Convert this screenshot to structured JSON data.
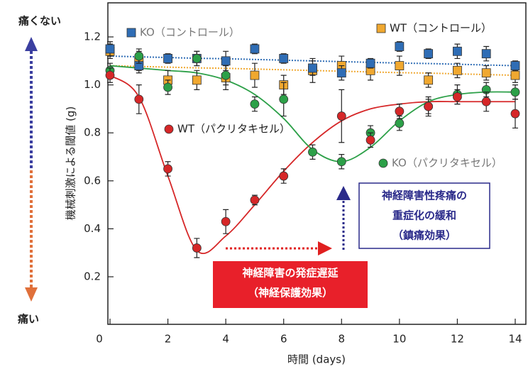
{
  "chart_data": {
    "type": "scatter",
    "x_label": "時間 (days)",
    "y_label": "機械刺激による閾値 (g)",
    "top_label": "痛くない",
    "bottom_label": "痛い",
    "x": [
      0,
      1,
      2,
      3,
      4,
      5,
      6,
      7,
      8,
      9,
      10,
      11,
      12,
      13,
      14
    ],
    "xlim": [
      0,
      14
    ],
    "xticks": [
      0,
      2,
      4,
      6,
      8,
      10,
      12,
      14
    ],
    "ylim": [
      0,
      1.34
    ],
    "yticks": [
      0.2,
      0.4,
      0.6,
      0.8,
      {
        "value": 1,
        "label": "1.0"
      },
      1.2
    ],
    "series": [
      {
        "name": "KO（コントロール）",
        "color": "#2f6db5",
        "marker": "square",
        "fit_style": "dotted",
        "values": [
          1.15,
          1.08,
          1.11,
          1.11,
          1.1,
          1.15,
          1.11,
          1.07,
          1.05,
          1.09,
          1.16,
          1.13,
          1.14,
          1.13,
          1.08
        ],
        "errors": [
          0.03,
          0.03,
          0.02,
          0.03,
          0.04,
          0.02,
          0.02,
          0.03,
          0.03,
          0.02,
          0.02,
          0.02,
          0.03,
          0.03,
          0.02
        ],
        "fit": [
          1.12,
          1.117,
          1.114,
          1.111,
          1.109,
          1.106,
          1.103,
          1.1,
          1.097,
          1.094,
          1.091,
          1.089,
          1.086,
          1.083,
          1.08
        ]
      },
      {
        "name": "WT（コントロール）",
        "color": "#f0a830",
        "marker": "square",
        "fit_style": "dotted",
        "values": [
          1.14,
          1.1,
          1.02,
          1.02,
          1.03,
          1.04,
          1.0,
          1.06,
          1.08,
          1.06,
          1.08,
          1.02,
          1.06,
          1.05,
          1.04
        ],
        "errors": [
          0.03,
          0.04,
          0.04,
          0.04,
          0.05,
          0.05,
          0.04,
          0.05,
          0.04,
          0.04,
          0.04,
          0.03,
          0.03,
          0.03,
          0.03
        ],
        "fit": [
          1.08,
          1.077,
          1.074,
          1.071,
          1.069,
          1.066,
          1.063,
          1.06,
          1.057,
          1.054,
          1.051,
          1.049,
          1.046,
          1.043,
          1.04
        ]
      },
      {
        "name": "WT（パクリタキセル）",
        "color": "#d62728",
        "marker": "circle",
        "fit_style": "solid",
        "values": [
          1.04,
          0.94,
          0.65,
          0.32,
          0.43,
          0.52,
          0.62,
          null,
          0.87,
          0.77,
          0.89,
          0.91,
          0.95,
          0.93,
          0.88
        ],
        "errors": [
          0.03,
          0.06,
          0.03,
          0.04,
          0.05,
          0.02,
          0.03,
          null,
          0.11,
          0.03,
          0.03,
          0.03,
          0.03,
          0.04,
          0.06
        ],
        "fit": [
          1.04,
          0.95,
          0.62,
          0.31,
          0.37,
          0.5,
          0.64,
          0.76,
          0.85,
          0.9,
          0.92,
          0.93,
          0.93,
          0.93,
          0.93
        ]
      },
      {
        "name": "KO（パクリタキセル）",
        "color": "#2ca048",
        "marker": "circle",
        "fit_style": "solid",
        "values": [
          1.06,
          1.12,
          0.99,
          1.11,
          1.04,
          0.92,
          0.94,
          0.72,
          0.68,
          0.8,
          0.84,
          0.91,
          0.96,
          0.98,
          0.97
        ],
        "errors": [
          0.03,
          0.03,
          0.03,
          0.03,
          0.04,
          0.03,
          0.07,
          0.03,
          0.03,
          0.03,
          0.03,
          0.04,
          0.04,
          0.03,
          0.03
        ],
        "fit": [
          1.08,
          1.07,
          1.06,
          1.05,
          1.02,
          0.96,
          0.86,
          0.73,
          0.68,
          0.74,
          0.85,
          0.93,
          0.96,
          0.97,
          0.97
        ]
      }
    ],
    "annotations": [
      {
        "lines": [
          "神経障害の発症遅延",
          "（神経保護効果）"
        ]
      },
      {
        "lines": [
          "神経障害性疼痛の",
          "重症化の緩和",
          "（鎮痛効果）"
        ]
      }
    ]
  }
}
